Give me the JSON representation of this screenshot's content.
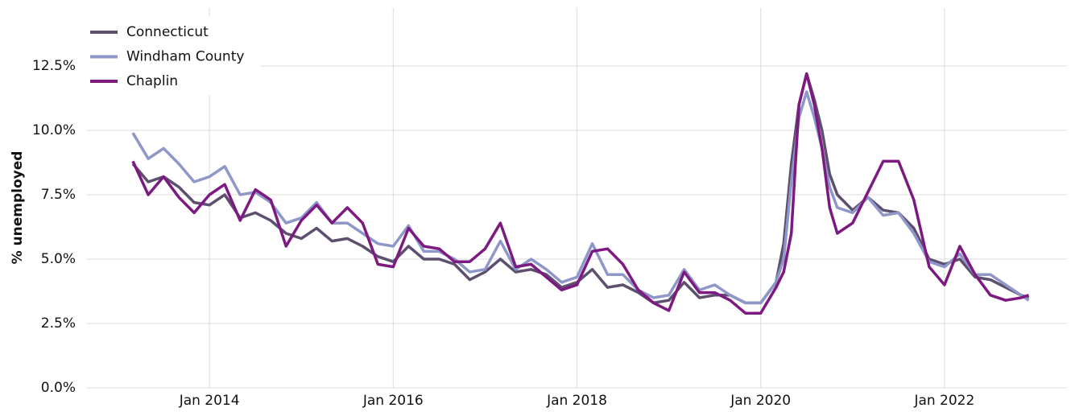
{
  "chart_data": {
    "type": "line",
    "y_label": "% unemployed",
    "x": [
      "2013-03",
      "2013-05",
      "2013-07",
      "2013-09",
      "2013-11",
      "2014-01",
      "2014-03",
      "2014-05",
      "2014-07",
      "2014-09",
      "2014-11",
      "2015-01",
      "2015-03",
      "2015-05",
      "2015-07",
      "2015-09",
      "2015-11",
      "2016-01",
      "2016-03",
      "2016-05",
      "2016-07",
      "2016-09",
      "2016-11",
      "2017-01",
      "2017-03",
      "2017-05",
      "2017-07",
      "2017-09",
      "2017-11",
      "2018-01",
      "2018-03",
      "2018-05",
      "2018-07",
      "2018-09",
      "2018-11",
      "2019-01",
      "2019-03",
      "2019-05",
      "2019-07",
      "2019-09",
      "2019-11",
      "2020-01",
      "2020-03",
      "2020-04",
      "2020-05",
      "2020-06",
      "2020-07",
      "2020-08",
      "2020-09",
      "2020-10",
      "2020-11",
      "2021-01",
      "2021-03",
      "2021-05",
      "2021-07",
      "2021-09",
      "2021-11",
      "2022-01",
      "2022-03",
      "2022-05",
      "2022-07",
      "2022-09",
      "2022-11",
      "2022-12"
    ],
    "series": [
      {
        "name": "Connecticut",
        "color": "#5d4f6e",
        "values": [
          8.7,
          8.0,
          8.2,
          7.8,
          7.2,
          7.1,
          7.5,
          6.6,
          6.8,
          6.5,
          6.0,
          5.8,
          6.2,
          5.7,
          5.8,
          5.5,
          5.1,
          4.9,
          5.5,
          5.0,
          5.0,
          4.8,
          4.2,
          4.5,
          5.0,
          4.5,
          4.6,
          4.4,
          3.9,
          4.1,
          4.6,
          3.9,
          4.0,
          3.7,
          3.3,
          3.4,
          4.1,
          3.5,
          3.6,
          3.6,
          3.3,
          3.3,
          4.1,
          5.6,
          8.7,
          11.0,
          12.2,
          11.2,
          10.0,
          8.3,
          7.5,
          6.9,
          7.4,
          6.9,
          6.8,
          6.2,
          5.0,
          4.8,
          5.0,
          4.3,
          4.2,
          3.9,
          3.6,
          3.5
        ]
      },
      {
        "name": "Windham County",
        "color": "#8e97c8",
        "values": [
          9.9,
          8.9,
          9.3,
          8.7,
          8.0,
          8.2,
          8.6,
          7.5,
          7.6,
          7.2,
          6.4,
          6.6,
          7.2,
          6.4,
          6.4,
          6.0,
          5.6,
          5.5,
          6.3,
          5.3,
          5.3,
          5.0,
          4.5,
          4.6,
          5.7,
          4.6,
          5.0,
          4.6,
          4.1,
          4.3,
          5.6,
          4.4,
          4.4,
          3.8,
          3.5,
          3.6,
          4.6,
          3.8,
          4.0,
          3.6,
          3.3,
          3.3,
          4.1,
          5.0,
          8.0,
          10.5,
          11.5,
          10.5,
          9.3,
          7.8,
          7.0,
          6.8,
          7.4,
          6.7,
          6.8,
          6.0,
          4.9,
          4.7,
          5.2,
          4.4,
          4.4,
          4.0,
          3.6,
          3.4
        ]
      },
      {
        "name": "Chaplin",
        "color": "#7d1a82",
        "values": [
          8.8,
          7.5,
          8.2,
          7.4,
          6.8,
          7.5,
          7.9,
          6.5,
          7.7,
          7.3,
          5.5,
          6.5,
          7.1,
          6.4,
          7.0,
          6.4,
          4.8,
          4.7,
          6.2,
          5.5,
          5.4,
          4.9,
          4.9,
          5.4,
          6.4,
          4.7,
          4.8,
          4.3,
          3.8,
          4.0,
          5.3,
          5.4,
          4.8,
          3.8,
          3.3,
          3.0,
          4.5,
          3.7,
          3.7,
          3.4,
          2.9,
          2.9,
          3.9,
          4.5,
          6.0,
          11.0,
          12.2,
          11.0,
          9.3,
          7.0,
          6.0,
          6.4,
          7.6,
          8.8,
          8.8,
          7.3,
          4.7,
          4.0,
          5.5,
          4.4,
          3.6,
          3.4,
          3.5,
          3.6
        ]
      }
    ],
    "xlim": [
      "2012-09",
      "2023-05"
    ],
    "xticks": [
      {
        "value": "2014-01",
        "label": "Jan 2014"
      },
      {
        "value": "2016-01",
        "label": "Jan 2016"
      },
      {
        "value": "2018-01",
        "label": "Jan 2018"
      },
      {
        "value": "2020-01",
        "label": "Jan 2020"
      },
      {
        "value": "2022-01",
        "label": "Jan 2022"
      }
    ],
    "ylim": [
      0,
      14.75
    ],
    "yticks": [
      {
        "value": 0,
        "label": "0.0%"
      },
      {
        "value": 2.5,
        "label": "2.5%"
      },
      {
        "value": 5,
        "label": "5.0%"
      },
      {
        "value": 7.5,
        "label": "7.5%"
      },
      {
        "value": 10,
        "label": "10.0%"
      },
      {
        "value": 12.5,
        "label": "12.5%"
      }
    ],
    "grid": true,
    "legend": "top-left"
  }
}
